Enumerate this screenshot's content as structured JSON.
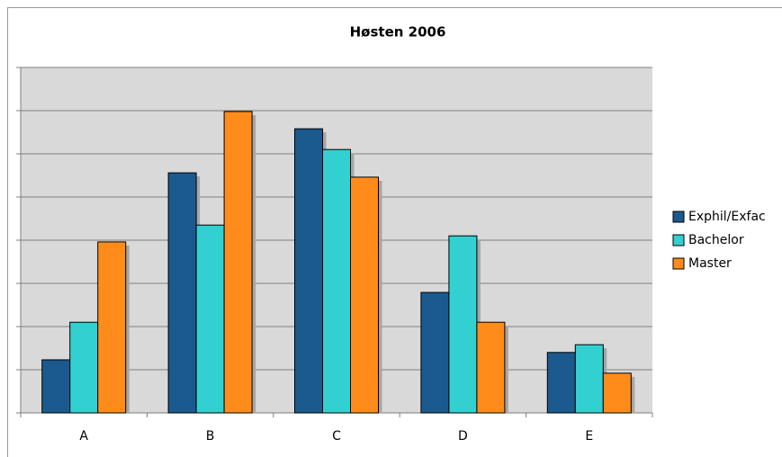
{
  "chart_data": {
    "type": "bar",
    "title": "Høsten 2006",
    "categories": [
      "A",
      "B",
      "C",
      "D",
      "E"
    ],
    "series": [
      {
        "name": "Exphil/Exfac",
        "color": "#1b5a8e",
        "values": [
          1.23,
          5.56,
          6.58,
          2.79,
          1.4
        ]
      },
      {
        "name": "Bachelor",
        "color": "#33d0d2",
        "values": [
          2.1,
          4.35,
          6.1,
          4.1,
          1.58
        ]
      },
      {
        "name": "Master",
        "color": "#ff8c1a",
        "values": [
          3.96,
          6.98,
          5.46,
          2.1,
          0.92
        ]
      }
    ],
    "ylim": [
      0,
      8
    ],
    "yticks": [
      0,
      1,
      2,
      3,
      4,
      5,
      6,
      7,
      8
    ],
    "grid": true,
    "legend": "right"
  }
}
